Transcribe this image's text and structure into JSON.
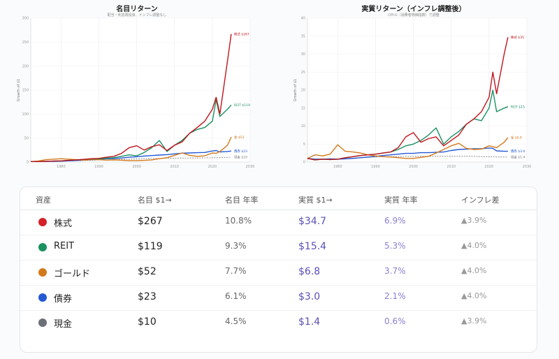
{
  "chart_data": [
    {
      "type": "line",
      "title": "名目リターン",
      "subtitle": "配当・利息再投資、インフレ調整なし",
      "xlabel": "",
      "ylabel": "Growth of $1",
      "xlim": [
        1972,
        2030
      ],
      "ylim": [
        0,
        300
      ],
      "xticks": [
        1980,
        1990,
        2000,
        2010,
        2020,
        2030
      ],
      "yticks": [
        0,
        50,
        100,
        150,
        200,
        250,
        300
      ],
      "grid": true,
      "legend": "inline-end-labels",
      "x": [
        1972,
        1974,
        1976,
        1978,
        1980,
        1982,
        1984,
        1986,
        1988,
        1990,
        1992,
        1994,
        1996,
        1998,
        2000,
        2002,
        2004,
        2006,
        2008,
        2010,
        2012,
        2014,
        2016,
        2018,
        2020,
        2021,
        2022,
        2024,
        2025
      ],
      "series": [
        {
          "name": "株式",
          "end_label": "株式 $267",
          "color": "#c0141c",
          "values": [
            1,
            1,
            1.5,
            2,
            2.5,
            3.5,
            4.5,
            5.5,
            7,
            7.5,
            10,
            12,
            18,
            30,
            34,
            25,
            32,
            36,
            24,
            35,
            42,
            60,
            72,
            85,
            110,
            135,
            100,
            210,
            267
          ]
        },
        {
          "name": "REIT",
          "end_label": "REIT $119",
          "color": "#1a9160",
          "values": [
            1,
            1,
            1.5,
            2,
            2.5,
            3.5,
            4.5,
            5.5,
            6.5,
            6.5,
            8,
            9,
            12,
            15,
            13,
            20,
            30,
            45,
            22,
            35,
            45,
            60,
            68,
            72,
            85,
            130,
            95,
            110,
            119
          ]
        },
        {
          "name": "ゴールド",
          "end_label": "金 $52",
          "color": "#d4791a",
          "values": [
            1,
            2,
            5,
            6,
            7,
            6,
            5,
            4,
            5,
            5,
            4,
            4.5,
            4,
            3,
            3,
            3.5,
            4.5,
            7,
            9,
            14,
            19,
            14,
            12,
            13,
            19,
            18,
            22,
            35,
            52
          ]
        },
        {
          "name": "債券",
          "end_label": "債券 $23",
          "color": "#2459d4",
          "values": [
            1,
            1.1,
            1.3,
            1.5,
            1.8,
            2.5,
            3.2,
            4,
            4.8,
            5.5,
            6.8,
            7.2,
            8.5,
            10,
            11,
            12.5,
            13.5,
            14.5,
            15.5,
            17,
            18.5,
            19,
            19.5,
            20,
            23,
            24,
            21,
            22,
            23
          ]
        },
        {
          "name": "現金",
          "end_label": "現金 $10",
          "color": "#777777",
          "dashed": true,
          "values": [
            1,
            1.1,
            1.3,
            1.5,
            1.8,
            2.2,
            2.8,
            3.2,
            3.7,
            4.3,
            4.7,
            5.1,
            5.5,
            6,
            6.6,
            7,
            7.3,
            7.6,
            8,
            8.2,
            8.3,
            8.4,
            8.5,
            8.7,
            9,
            9,
            9.2,
            9.7,
            10
          ]
        }
      ]
    },
    {
      "type": "line",
      "title": "実質リターン（インフレ調整後）",
      "subtitle": "CPI-U（消費者物価指数）で調整",
      "xlabel": "",
      "ylabel": "Growth of $1",
      "xlim": [
        1972,
        2030
      ],
      "ylim": [
        0,
        40
      ],
      "xticks": [
        1980,
        1990,
        2000,
        2010,
        2020,
        2030
      ],
      "yticks": [
        0,
        5,
        10,
        15,
        20,
        25,
        30,
        35,
        40
      ],
      "grid": true,
      "legend": "inline-end-labels",
      "x": [
        1972,
        1974,
        1976,
        1978,
        1980,
        1982,
        1984,
        1986,
        1988,
        1990,
        1992,
        1994,
        1996,
        1998,
        2000,
        2002,
        2004,
        2006,
        2008,
        2010,
        2012,
        2014,
        2016,
        2018,
        2020,
        2021,
        2022,
        2024,
        2025
      ],
      "series": [
        {
          "name": "株式",
          "end_label": "株式 $35",
          "color": "#c0141c",
          "values": [
            1,
            0.6,
            0.8,
            0.7,
            0.8,
            1.2,
            1.5,
            1.8,
            2,
            2.2,
            2.5,
            2.8,
            4,
            7,
            8.2,
            5.5,
            6.5,
            7,
            4.5,
            6,
            7.5,
            10.5,
            12,
            14,
            18,
            25,
            19,
            30,
            34.7
          ]
        },
        {
          "name": "REIT",
          "end_label": "REIT $15",
          "color": "#1a9160",
          "values": [
            1,
            0.6,
            0.8,
            0.7,
            0.8,
            1.2,
            1.5,
            1.8,
            2,
            2.2,
            2.5,
            2.8,
            3.5,
            4.5,
            5,
            6,
            7.5,
            9.5,
            5,
            7,
            8.5,
            10.5,
            12,
            11.5,
            15,
            20,
            14,
            15,
            15.4
          ]
        },
        {
          "name": "ゴールド",
          "end_label": "金 $6.8",
          "color": "#d4791a",
          "values": [
            1,
            2,
            1.7,
            2.2,
            4.8,
            3,
            2.8,
            2.5,
            2,
            1.7,
            1.5,
            1.4,
            1.2,
            1,
            1,
            1.3,
            1.6,
            2.5,
            3.5,
            4.5,
            5.2,
            3.8,
            3.5,
            3.6,
            4.5,
            4.3,
            4,
            5.5,
            6.8
          ]
        },
        {
          "name": "債券",
          "end_label": "債券 $3.0",
          "color": "#2459d4",
          "values": [
            1,
            0.8,
            0.8,
            0.9,
            0.8,
            0.9,
            1,
            1.2,
            1.4,
            1.6,
            1.8,
            2,
            2.2,
            2.4,
            2.4,
            2.6,
            2.6,
            2.7,
            2.8,
            3.2,
            3.5,
            3.6,
            3.7,
            3.7,
            3.9,
            3.8,
            3.1,
            3,
            3
          ]
        },
        {
          "name": "現金",
          "end_label": "現金 $1.4",
          "color": "#777777",
          "dashed": true,
          "values": [
            1,
            0.9,
            0.9,
            0.9,
            0.9,
            1,
            1.1,
            1.2,
            1.3,
            1.4,
            1.5,
            1.5,
            1.5,
            1.6,
            1.6,
            1.6,
            1.6,
            1.6,
            1.6,
            1.6,
            1.6,
            1.6,
            1.6,
            1.5,
            1.5,
            1.5,
            1.4,
            1.4,
            1.4
          ]
        }
      ]
    }
  ],
  "table": {
    "headers": {
      "asset": "資産",
      "nominal": "名目 $1→",
      "nominal_rate": "名目 年率",
      "real": "実質 $1→",
      "real_rate": "実質 年率",
      "inflation_gap": "インフレ差"
    },
    "rows": [
      {
        "name": "株式",
        "color": "#d42027",
        "nominal": "$267",
        "nominal_rate": "10.8%",
        "real": "$34.7",
        "real_rate": "6.9%",
        "gap": "▲3.9%"
      },
      {
        "name": "REIT",
        "color": "#1a9160",
        "nominal": "$119",
        "nominal_rate": "9.3%",
        "real": "$15.4",
        "real_rate": "5.3%",
        "gap": "▲4.0%"
      },
      {
        "name": "ゴールド",
        "color": "#d4791a",
        "nominal": "$52",
        "nominal_rate": "7.7%",
        "real": "$6.8",
        "real_rate": "3.7%",
        "gap": "▲4.0%"
      },
      {
        "name": "債券",
        "color": "#2459d4",
        "nominal": "$23",
        "nominal_rate": "6.1%",
        "real": "$3.0",
        "real_rate": "2.1%",
        "gap": "▲4.0%"
      },
      {
        "name": "現金",
        "color": "#6b6f78",
        "nominal": "$10",
        "nominal_rate": "4.5%",
        "real": "$1.4",
        "real_rate": "0.6%",
        "gap": "▲3.9%"
      }
    ]
  }
}
